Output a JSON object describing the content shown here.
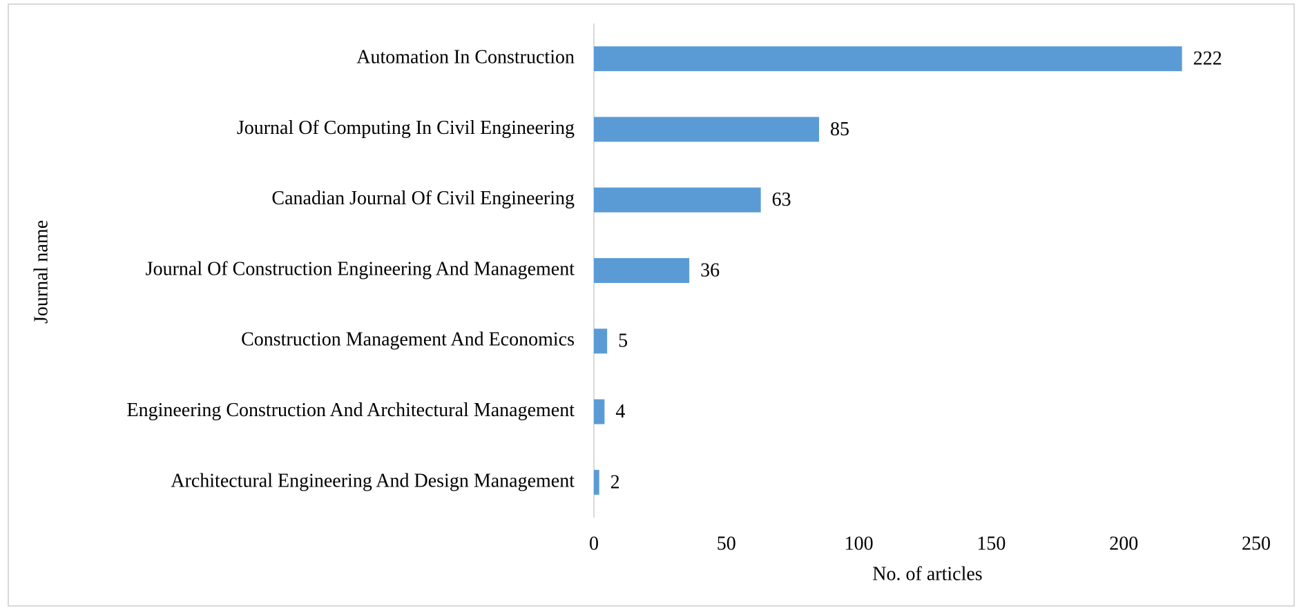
{
  "chart_data": {
    "type": "bar",
    "orientation": "horizontal",
    "categories": [
      "Automation In Construction",
      "Journal Of Computing In Civil Engineering",
      "Canadian Journal Of Civil Engineering",
      "Journal Of Construction Engineering And Management",
      "Construction Management And Economics",
      "Engineering Construction And Architectural Management",
      "Architectural Engineering And Design Management"
    ],
    "values": [
      222,
      85,
      63,
      36,
      5,
      4,
      2
    ],
    "color": "#5b9bd5",
    "xlim": [
      0,
      250
    ],
    "xticks": [
      0,
      50,
      100,
      150,
      200,
      250
    ],
    "xlabel": "No. of articles",
    "ylabel": "Journal name",
    "grid": false
  }
}
